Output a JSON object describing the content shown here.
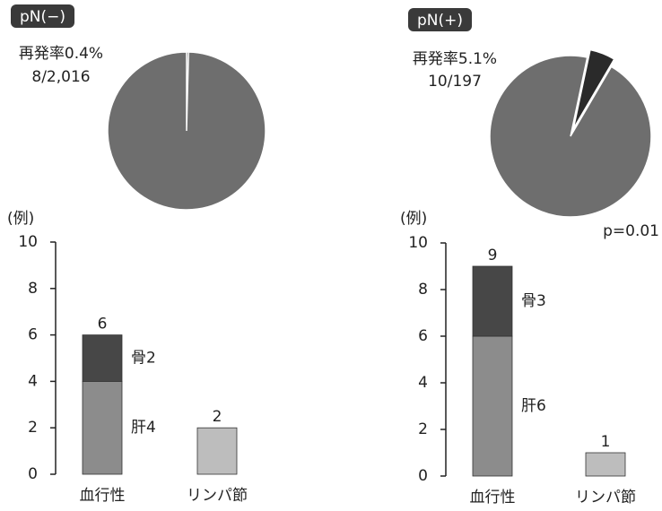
{
  "chart_data": [
    {
      "type": "pie",
      "title": "pN(−)",
      "annotations": [
        "再発率0.4%",
        "8/2,016"
      ],
      "values": [
        0.4,
        99.6
      ],
      "colors": [
        "#2a2a2a",
        "#6e6e6e"
      ]
    },
    {
      "type": "pie",
      "title": "pN(+)",
      "annotations": [
        "再発率5.1%",
        "10/197"
      ],
      "values": [
        5.1,
        94.9
      ],
      "colors": [
        "#2a2a2a",
        "#6e6e6e"
      ]
    },
    {
      "type": "bar",
      "stacked": true,
      "y_label": "(例)",
      "categories": [
        "血行性",
        "リンパ節"
      ],
      "series": [
        {
          "color": "#8c8c8c",
          "values": [
            4,
            null
          ],
          "value_labels": [
            "肝4",
            null
          ]
        },
        {
          "color": "#474747",
          "values": [
            2,
            null
          ],
          "value_labels": [
            "骨2",
            null
          ]
        },
        {
          "color": "#bdbdbd",
          "values": [
            null,
            2
          ]
        }
      ],
      "totals": [
        6,
        2
      ],
      "ylim": [
        0,
        10
      ],
      "yticks": [
        0,
        2,
        4,
        6,
        8,
        10
      ]
    },
    {
      "type": "bar",
      "stacked": true,
      "y_label": "(例)",
      "annotation": "p=0.01",
      "categories": [
        "血行性",
        "リンパ節"
      ],
      "series": [
        {
          "color": "#8c8c8c",
          "values": [
            6,
            null
          ],
          "value_labels": [
            "肝6",
            null
          ]
        },
        {
          "color": "#474747",
          "values": [
            3,
            null
          ],
          "value_labels": [
            "骨3",
            null
          ]
        },
        {
          "color": "#bdbdbd",
          "values": [
            null,
            1
          ]
        }
      ],
      "totals": [
        9,
        1
      ],
      "ylim": [
        0,
        10
      ],
      "yticks": [
        0,
        2,
        4,
        6,
        8,
        10
      ]
    }
  ]
}
